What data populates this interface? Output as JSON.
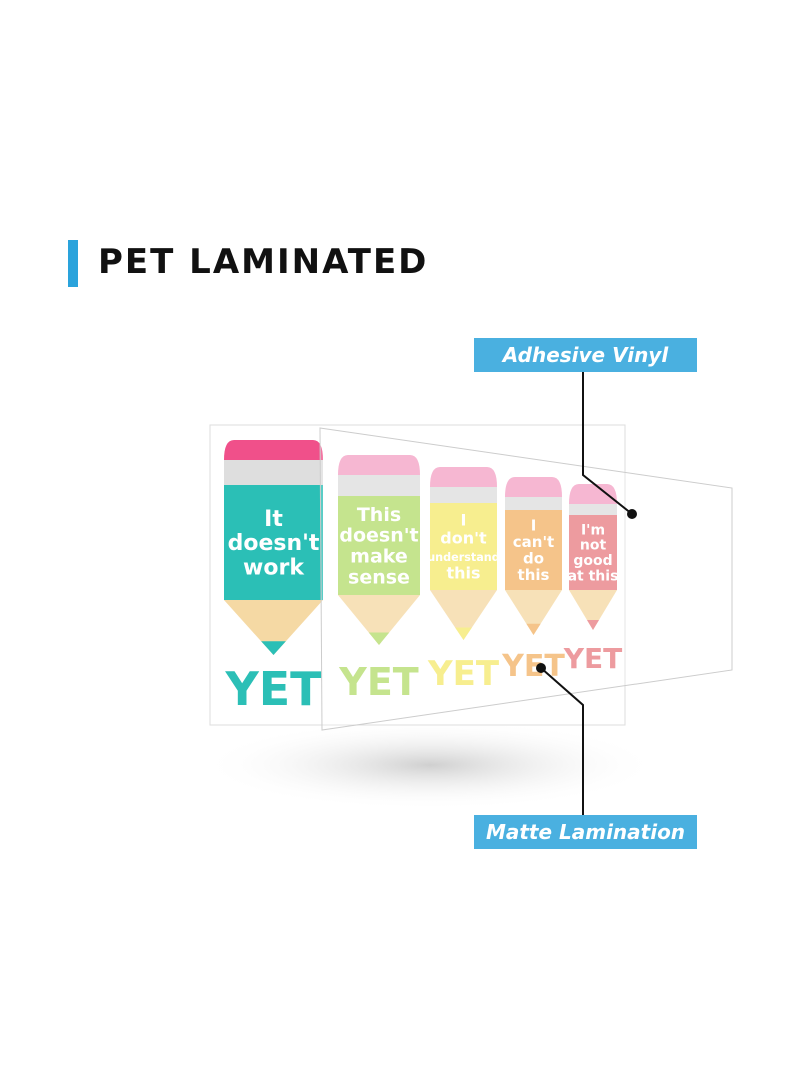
{
  "title": "PET LAMINATED",
  "callouts": {
    "top": "Adhesive Vinyl",
    "bottom": "Matte Lamination"
  },
  "colors": {
    "accent": "#4ab0e0",
    "eraser": "#f4a3c6",
    "eraser_first": "#f0508a"
  },
  "pencils": [
    {
      "lines": [
        "It",
        "doesn't",
        "work"
      ],
      "suffix": "YET",
      "color": "#2bbfb6"
    },
    {
      "lines": [
        "This",
        "doesn't",
        "make",
        "sense"
      ],
      "suffix": "YET",
      "color": "#b5dd6f"
    },
    {
      "lines": [
        "I",
        "don't",
        "understand",
        "this"
      ],
      "suffix": "YET",
      "color": "#f5ea70"
    },
    {
      "lines": [
        "I",
        "can't",
        "do",
        "this"
      ],
      "suffix": "YET",
      "color": "#f2b46a"
    },
    {
      "lines": [
        "I'm",
        "not",
        "good",
        "at this"
      ],
      "suffix": "YET",
      "color": "#e87f84"
    }
  ]
}
